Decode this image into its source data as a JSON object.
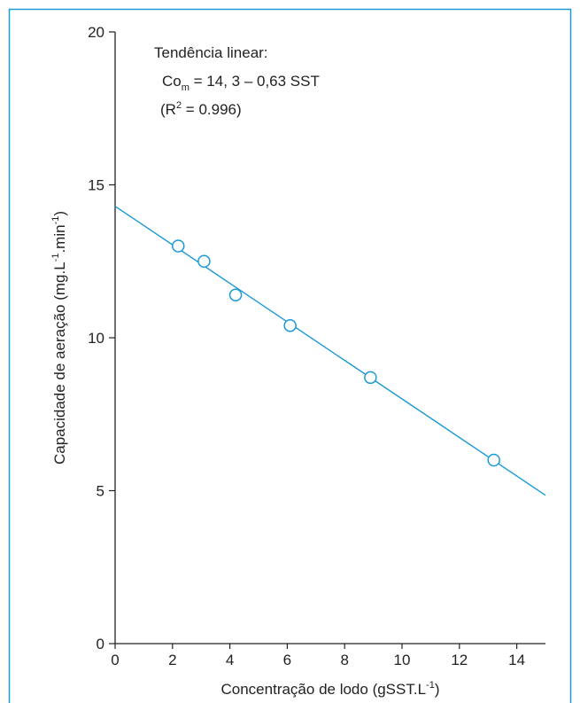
{
  "chart_data": {
    "type": "scatter",
    "xlabel_main": "Concentração de lodo (gSST.L",
    "xlabel_sup": "-1",
    "xlabel_end": ")",
    "ylabel_main": "Capacidade de aeração (mg.L",
    "ylabel_sup1": "-1",
    "ylabel_mid": ".min",
    "ylabel_sup2": "-1",
    "ylabel_end": ")",
    "xlim": [
      0,
      15
    ],
    "ylim": [
      0,
      20
    ],
    "x_ticks": [
      0,
      2,
      4,
      6,
      8,
      10,
      12,
      14
    ],
    "x_tick_labels": [
      "0",
      "2",
      "4",
      "6",
      "8",
      "10",
      "12",
      "14"
    ],
    "y_ticks": [
      0,
      5,
      10,
      15,
      20
    ],
    "y_tick_labels": [
      "0",
      "5",
      "10",
      "15",
      "20"
    ],
    "points": [
      {
        "x": 2.2,
        "y": 13.0
      },
      {
        "x": 3.1,
        "y": 12.5
      },
      {
        "x": 4.2,
        "y": 11.4
      },
      {
        "x": 6.1,
        "y": 10.4
      },
      {
        "x": 8.9,
        "y": 8.7
      },
      {
        "x": 13.2,
        "y": 6.0
      }
    ],
    "trendline": {
      "intercept": 14.3,
      "slope": -0.63
    },
    "annotation": {
      "line1": "Tendência linear:",
      "line2_a": "Co",
      "line2_sub": "m",
      "line2_b": " = 14, 3 – 0,63 SST",
      "line3_a": "(R",
      "line3_sup": "2",
      "line3_b": " = 0.996)"
    },
    "colors": {
      "series": "#1a9ad6",
      "frame": "#1a9ad6",
      "axis": "#222222"
    },
    "grid": false
  }
}
